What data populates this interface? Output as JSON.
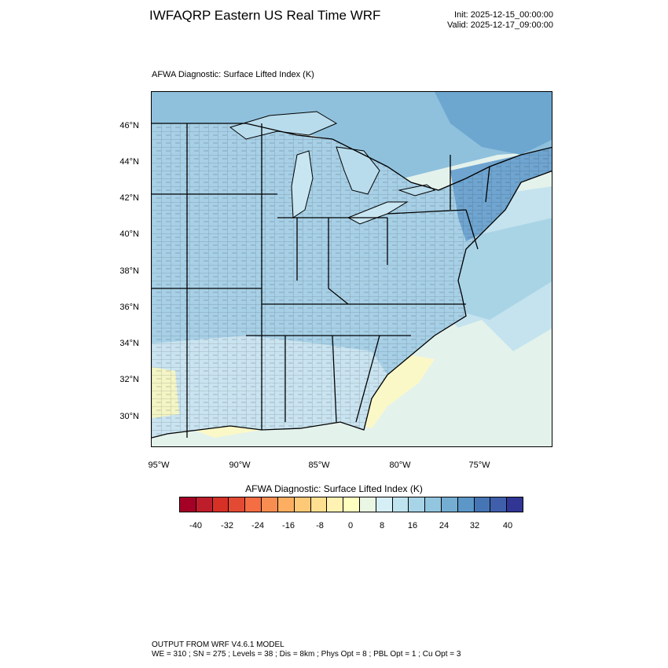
{
  "header": {
    "title": "IWFAQRP Eastern US Real Time WRF",
    "init": "Init: 2025-12-15_00:00:00",
    "valid": "Valid: 2025-12-17_09:00:00"
  },
  "plot": {
    "field_label": "AFWA Diagnostic: Surface Lifted Index   (K)",
    "lat_labels": [
      "46°N",
      "44°N",
      "42°N",
      "40°N",
      "38°N",
      "36°N",
      "34°N",
      "32°N",
      "30°N"
    ],
    "lon_labels": [
      "95°W",
      "90°W",
      "85°W",
      "80°W",
      "75°W"
    ]
  },
  "colorbar": {
    "title": "AFWA Diagnostic: Surface Lifted Index  (K)",
    "tick_labels": [
      "-40",
      "-32",
      "-24",
      "-16",
      "-8",
      "0",
      "8",
      "16",
      "24",
      "32",
      "40"
    ],
    "colors": [
      "#a50026",
      "#be1e2b",
      "#d73027",
      "#e34a33",
      "#f46d43",
      "#f88d52",
      "#fdae61",
      "#fdc977",
      "#fee090",
      "#fff2b2",
      "#ffffbf",
      "#eaf7e4",
      "#d6eef6",
      "#c0e4ef",
      "#a8d4e8",
      "#92c5de",
      "#74add1",
      "#5c97c7",
      "#4575b4",
      "#3f5fab",
      "#313695"
    ]
  },
  "footer": {
    "line1": "OUTPUT FROM WRF V4.6.1 MODEL",
    "line2": "WE = 310 ; SN = 275 ; Levels = 38 ; Dis = 8km ; Phys Opt = 8 ; PBL Opt = 1 ; Cu Opt = 3"
  }
}
